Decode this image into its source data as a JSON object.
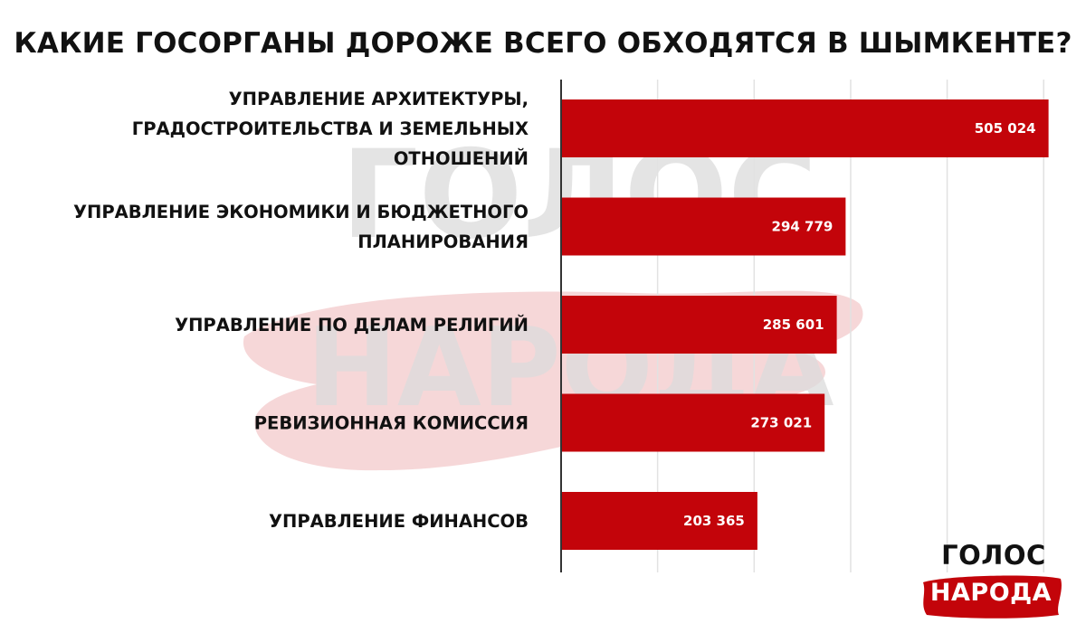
{
  "title": "КАКИЕ ГОСОРГАНЫ ДОРОЖЕ ВСЕГО ОБХОДЯТСЯ В ШЫМКЕНТЕ?",
  "watermark": {
    "line1": "ГОЛОС",
    "line2": "НАРОДА"
  },
  "logo": {
    "line1": "ГОЛОС",
    "line2": "НАРОДА"
  },
  "colors": {
    "bar": "#c3040a",
    "text": "#111111",
    "grid": "#e2e2e2",
    "axis": "#333333",
    "watermark_text": "#dcdcdc",
    "watermark_brush": "#f5d3d4"
  },
  "chart_data": {
    "type": "bar",
    "orientation": "horizontal",
    "categories": [
      [
        "УПРАВЛЕНИЕ АРХИТЕКТУРЫ,",
        "ГРАДОСТРОИТЕЛЬСТВА И ЗЕМЕЛЬНЫХ",
        "ОТНОШЕНИЙ"
      ],
      [
        "УПРАВЛЕНИЕ ЭКОНОМИКИ И БЮДЖЕТНОГО",
        "ПЛАНИРОВАНИЯ"
      ],
      [
        "УПРАВЛЕНИЕ ПО ДЕЛАМ РЕЛИГИЙ"
      ],
      [
        "РЕВИЗИОННАЯ КОМИССИЯ"
      ],
      [
        "УПРАВЛЕНИЕ ФИНАНСОВ"
      ]
    ],
    "values": [
      505024,
      294779,
      285601,
      273021,
      203365
    ],
    "value_labels": [
      "505 024",
      "294 779",
      "285 601",
      "273 021",
      "203 365"
    ],
    "xlim": [
      0,
      500000
    ],
    "gridlines": [
      0,
      100000,
      200000,
      300000,
      400000,
      500000
    ],
    "grid": true,
    "legend": "none"
  }
}
